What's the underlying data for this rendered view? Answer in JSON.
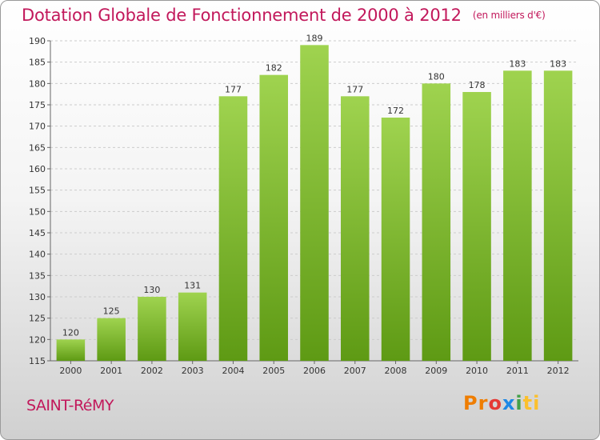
{
  "chart_data": {
    "type": "bar",
    "title": "Dotation Globale de Fonctionnement de 2000 à 2012",
    "unit_note": "(en milliers d'€)",
    "categories": [
      "2000",
      "2001",
      "2002",
      "2003",
      "2004",
      "2005",
      "2006",
      "2007",
      "2008",
      "2009",
      "2010",
      "2011",
      "2012"
    ],
    "values": [
      120,
      125,
      130,
      131,
      177,
      182,
      189,
      177,
      172,
      180,
      178,
      183,
      183
    ],
    "ylim": [
      115,
      190
    ],
    "yticks": [
      115,
      120,
      125,
      130,
      135,
      140,
      145,
      150,
      155,
      160,
      165,
      170,
      175,
      180,
      185,
      190
    ],
    "grid": true,
    "xlabel": "",
    "ylabel": "",
    "bar_color": "#8cc63f",
    "bar_color_dark": "#5e9a14"
  },
  "commune": "SAINT-RéMY",
  "logo": {
    "p1": "Pr",
    "p2": "o",
    "p3": "x",
    "p4": "i",
    "p5": "ti"
  },
  "colors": {
    "title": "#c2185b",
    "grid": "#cccccc"
  }
}
